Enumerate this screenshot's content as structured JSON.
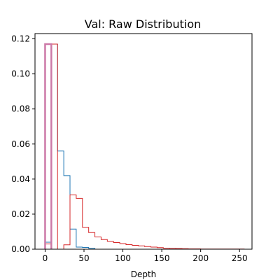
{
  "chart_data": {
    "type": "histogram",
    "title": "Val: Raw Distribution",
    "xlabel": "Depth",
    "ylabel": "",
    "xlim": [
      -13,
      266
    ],
    "ylim": [
      0,
      0.123
    ],
    "xticks": [
      0,
      50,
      100,
      150,
      200,
      250
    ],
    "xtick_labels": [
      "0",
      "50",
      "100",
      "150",
      "200",
      "250"
    ],
    "yticks": [
      0.0,
      0.02,
      0.04,
      0.06,
      0.08,
      0.1,
      0.12
    ],
    "ytick_labels": [
      "0.00",
      "0.02",
      "0.04",
      "0.06",
      "0.08",
      "0.10",
      "0.12"
    ],
    "grid": false,
    "legend": "none",
    "series": [
      {
        "color": "#1f77b4",
        "linewidth": 1,
        "bin_edges": [
          0,
          8,
          16,
          24,
          32,
          40,
          48,
          56,
          64
        ],
        "values": [
          0.004,
          0.117,
          0.056,
          0.042,
          0.0115,
          0.0012,
          0.001,
          0.0005
        ]
      },
      {
        "color": "#d62728",
        "linewidth": 1,
        "bin_edges": [
          0,
          8,
          16,
          24,
          32,
          40,
          48,
          56,
          64,
          72,
          80,
          88,
          96,
          104,
          112,
          120,
          128,
          136,
          144,
          152,
          160,
          168,
          176,
          184,
          192,
          200,
          208,
          216,
          224,
          232,
          240,
          248,
          256
        ],
        "values": [
          0.003,
          0.117,
          0.0,
          0.0025,
          0.031,
          0.029,
          0.0125,
          0.0095,
          0.007,
          0.0055,
          0.0045,
          0.0038,
          0.0032,
          0.0026,
          0.0022,
          0.0019,
          0.0015,
          0.0012,
          0.0009,
          0.0006,
          0.0005,
          0.0004,
          0.0003,
          0.0002,
          0.0002,
          0.0001,
          0.0001,
          0.0001,
          0.0001,
          0.0001,
          0.0001,
          0.0001
        ]
      },
      {
        "color": "#cc79a7",
        "linewidth": 2.5,
        "bin_edges": [
          0,
          8
        ],
        "values": [
          0.117
        ]
      }
    ]
  }
}
